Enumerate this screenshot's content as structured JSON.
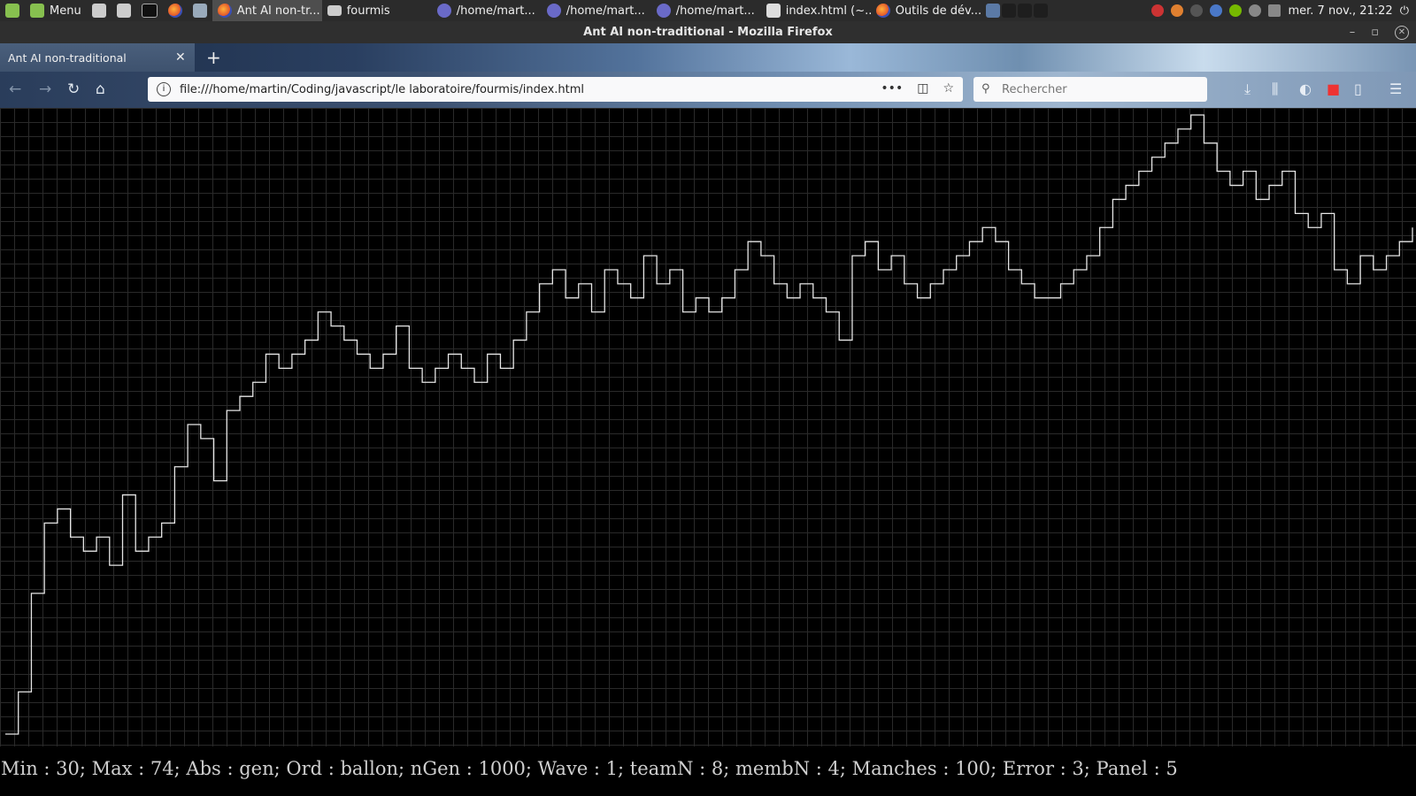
{
  "taskbar": {
    "menu_label": "Menu",
    "windows": [
      {
        "label": "Ant AI non-tr...",
        "icon": "firefox-icon",
        "active": true
      },
      {
        "label": "fourmis",
        "icon": "folder-icon"
      },
      {
        "label": "/home/mart...",
        "icon": "eclipse-icon"
      },
      {
        "label": "/home/mart...",
        "icon": "eclipse-icon"
      },
      {
        "label": "/home/mart...",
        "icon": "eclipse-icon"
      },
      {
        "label": "index.html (~...",
        "icon": "document-icon"
      },
      {
        "label": "Outils de dév...",
        "icon": "firefox-icon"
      }
    ],
    "clock": "mer. 7 nov., 21:22"
  },
  "window": {
    "title": "Ant AI non-traditional - Mozilla Firefox"
  },
  "browser": {
    "tab_title": "Ant AI non-traditional",
    "url": "file:///home/martin/Coding/javascript/le laboratoire/fourmis/index.html",
    "search_placeholder": "Rechercher"
  },
  "chart_data": {
    "type": "line",
    "title": "",
    "xlabel": "gen",
    "ylabel": "ballon",
    "ylim": [
      30,
      74
    ],
    "grid": true,
    "series": [
      {
        "values": [
          30,
          33,
          40,
          45,
          46,
          44,
          43,
          44,
          42,
          47,
          43,
          44,
          45,
          49,
          52,
          51,
          48,
          53,
          54,
          55,
          57,
          56,
          57,
          58,
          60,
          59,
          58,
          57,
          56,
          57,
          59,
          56,
          55,
          56,
          57,
          56,
          55,
          57,
          56,
          58,
          60,
          62,
          63,
          61,
          62,
          60,
          63,
          62,
          61,
          64,
          62,
          63,
          60,
          61,
          60,
          61,
          63,
          65,
          64,
          62,
          61,
          62,
          61,
          60,
          58,
          64,
          65,
          63,
          64,
          62,
          61,
          62,
          63,
          64,
          65,
          66,
          65,
          63,
          62,
          61,
          61,
          62,
          63,
          64,
          66,
          68,
          69,
          70,
          71,
          72,
          73,
          74,
          72,
          70,
          69,
          70,
          68,
          69,
          70,
          67,
          66,
          67,
          63,
          62,
          64,
          63,
          64,
          65,
          66
        ]
      }
    ]
  },
  "status_caption": "Min : 30; Max : 74; Abs : gen; Ord : ballon; nGen : 1000; Wave : 1; teamN : 8; membN : 4; Manches : 100; Error : 3; Panel : 5"
}
